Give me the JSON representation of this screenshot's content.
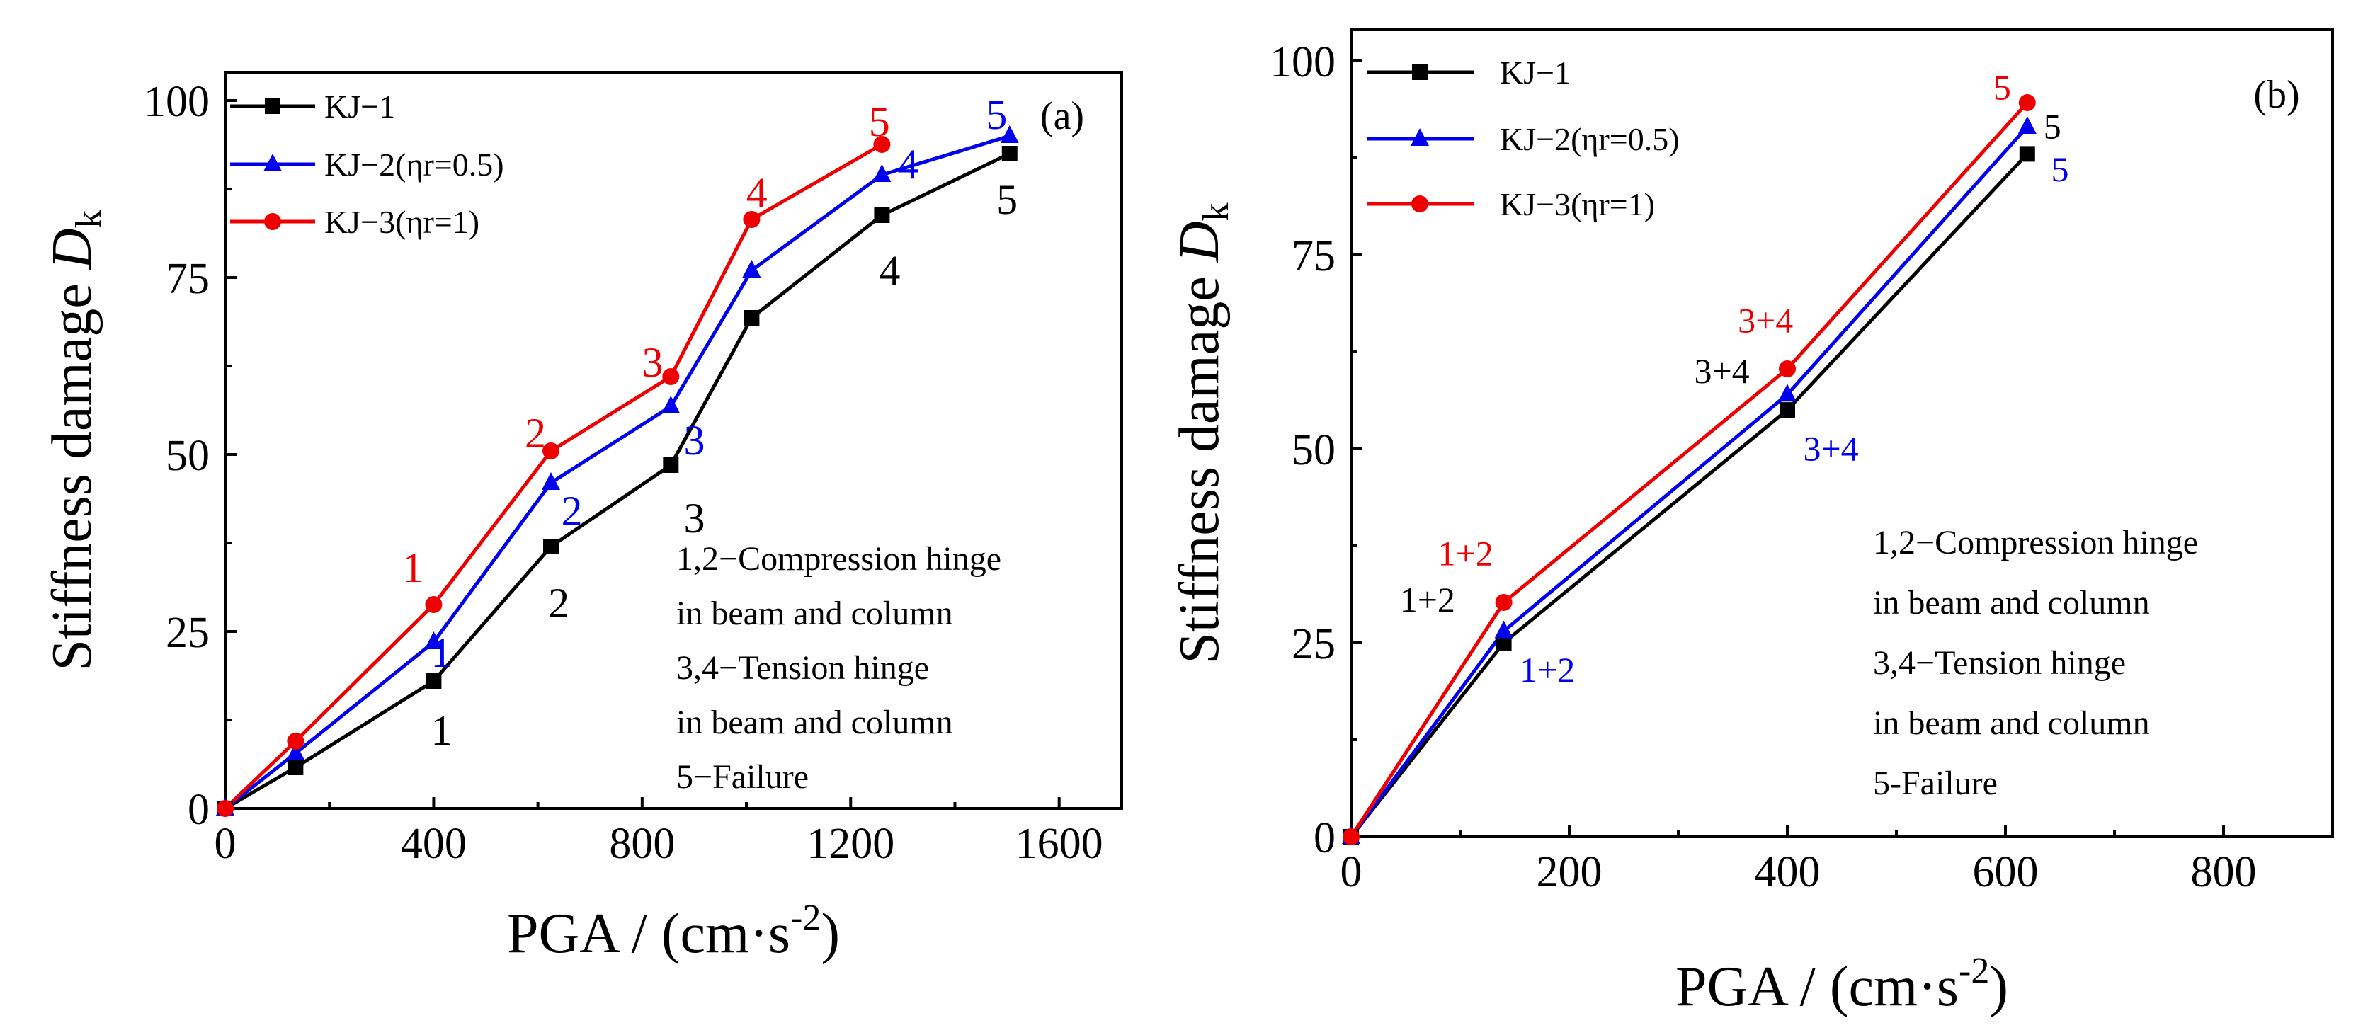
{
  "colors": {
    "kj1": "#000000",
    "kj2": "#0000ee",
    "kj3": "#ee0000"
  },
  "chart_data": [
    {
      "type": "line",
      "panel_label": "(a)",
      "ylabel": "Stiffness damage ",
      "ylabel_italic": "D",
      "ylabel_sub": "k",
      "xlabel": "PGA / (cm·s",
      "xlabel_sup": "-2",
      "xlabel_close": ")",
      "xlim": [
        0,
        1720
      ],
      "ylim": [
        0,
        104
      ],
      "xticks": [
        0,
        400,
        800,
        1200,
        1600
      ],
      "yticks": [
        0,
        25,
        50,
        75,
        100
      ],
      "series": [
        {
          "name": "KJ−1",
          "color_key": "kj1",
          "marker": "square",
          "x": [
            0,
            135,
            400,
            625,
            855,
            1010,
            1260,
            1505
          ],
          "y": [
            0,
            5.8,
            18,
            37,
            48.5,
            69.3,
            83.8,
            92.5
          ]
        },
        {
          "name": "KJ−2(ηr=0.5)",
          "color_key": "kj2",
          "marker": "triangle",
          "x": [
            0,
            135,
            400,
            625,
            855,
            1010,
            1260,
            1505
          ],
          "y": [
            0,
            7.8,
            23.5,
            46,
            56.8,
            76,
            89.5,
            95
          ]
        },
        {
          "name": "KJ−3(ηr=1)",
          "color_key": "kj3",
          "marker": "circle",
          "x": [
            0,
            135,
            400,
            625,
            855,
            1010,
            1260
          ],
          "y": [
            0,
            9.5,
            28.8,
            50.5,
            61,
            83.2,
            93.8
          ]
        }
      ],
      "point_labels": [
        {
          "text": "1",
          "color_key": "kj3",
          "x": 360,
          "y": 32
        },
        {
          "text": "1",
          "color_key": "kj2",
          "x": 415,
          "y": 20
        },
        {
          "text": "1",
          "color_key": "kj1",
          "x": 415,
          "y": 9
        },
        {
          "text": "2",
          "color_key": "kj3",
          "x": 595,
          "y": 51
        },
        {
          "text": "2",
          "color_key": "kj2",
          "x": 665,
          "y": 40
        },
        {
          "text": "2",
          "color_key": "kj1",
          "x": 640,
          "y": 27
        },
        {
          "text": "3",
          "color_key": "kj3",
          "x": 820,
          "y": 61
        },
        {
          "text": "3",
          "color_key": "kj2",
          "x": 900,
          "y": 50
        },
        {
          "text": "3",
          "color_key": "kj1",
          "x": 900,
          "y": 39
        },
        {
          "text": "4",
          "color_key": "kj3",
          "x": 1020,
          "y": 85
        },
        {
          "text": "4",
          "color_key": "kj2",
          "x": 1310,
          "y": 89
        },
        {
          "text": "4",
          "color_key": "kj1",
          "x": 1275,
          "y": 74
        },
        {
          "text": "5",
          "color_key": "kj3",
          "x": 1255,
          "y": 95
        },
        {
          "text": "5",
          "color_key": "kj2",
          "x": 1480,
          "y": 96
        },
        {
          "text": "5",
          "color_key": "kj1",
          "x": 1500,
          "y": 84
        }
      ],
      "annotation": [
        "1,2−Compression hinge",
        "in beam and column",
        "3,4−Tension hinge",
        "in beam and column",
        "5−Failure"
      ]
    },
    {
      "type": "line",
      "panel_label": "(b)",
      "ylabel": "Stiffness damage ",
      "ylabel_italic": "D",
      "ylabel_sub": "k",
      "xlabel": "PGA / (cm·s",
      "xlabel_sup": "-2",
      "xlabel_close": ")",
      "xlim": [
        0,
        900
      ],
      "ylim": [
        0,
        104
      ],
      "xticks": [
        0,
        200,
        400,
        600,
        800
      ],
      "yticks": [
        0,
        25,
        50,
        75,
        100
      ],
      "series": [
        {
          "name": "KJ−1",
          "color_key": "kj1",
          "marker": "square",
          "x": [
            0,
            140,
            400,
            620
          ],
          "y": [
            0,
            25,
            55,
            88
          ]
        },
        {
          "name": "KJ−2(ηr=0.5)",
          "color_key": "kj2",
          "marker": "triangle",
          "x": [
            0,
            140,
            400,
            620
          ],
          "y": [
            0,
            26.5,
            57,
            91.5
          ]
        },
        {
          "name": "KJ−3(ηr=1)",
          "color_key": "kj3",
          "marker": "circle",
          "x": [
            0,
            140,
            400,
            620
          ],
          "y": [
            0,
            30.2,
            60.3,
            94.6
          ]
        }
      ],
      "point_labels": [
        {
          "text": "1+2",
          "color_key": "kj3",
          "x": 105,
          "y": 35
        },
        {
          "text": "1+2",
          "color_key": "kj1",
          "x": 70,
          "y": 29
        },
        {
          "text": "1+2",
          "color_key": "kj2",
          "x": 180,
          "y": 20
        },
        {
          "text": "3+4",
          "color_key": "kj3",
          "x": 380,
          "y": 65
        },
        {
          "text": "3+4",
          "color_key": "kj1",
          "x": 340,
          "y": 58.5
        },
        {
          "text": "3+4",
          "color_key": "kj2",
          "x": 440,
          "y": 48.5
        },
        {
          "text": "5",
          "color_key": "kj3",
          "x": 597,
          "y": 95
        },
        {
          "text": "5",
          "color_key": "kj1",
          "x": 643,
          "y": 90
        },
        {
          "text": "5",
          "color_key": "kj2",
          "x": 650,
          "y": 84.5
        }
      ],
      "annotation": [
        "1,2−Compression hinge",
        "in beam and column",
        "3,4−Tension hinge",
        "in beam and column",
        "5-Failure"
      ]
    }
  ]
}
